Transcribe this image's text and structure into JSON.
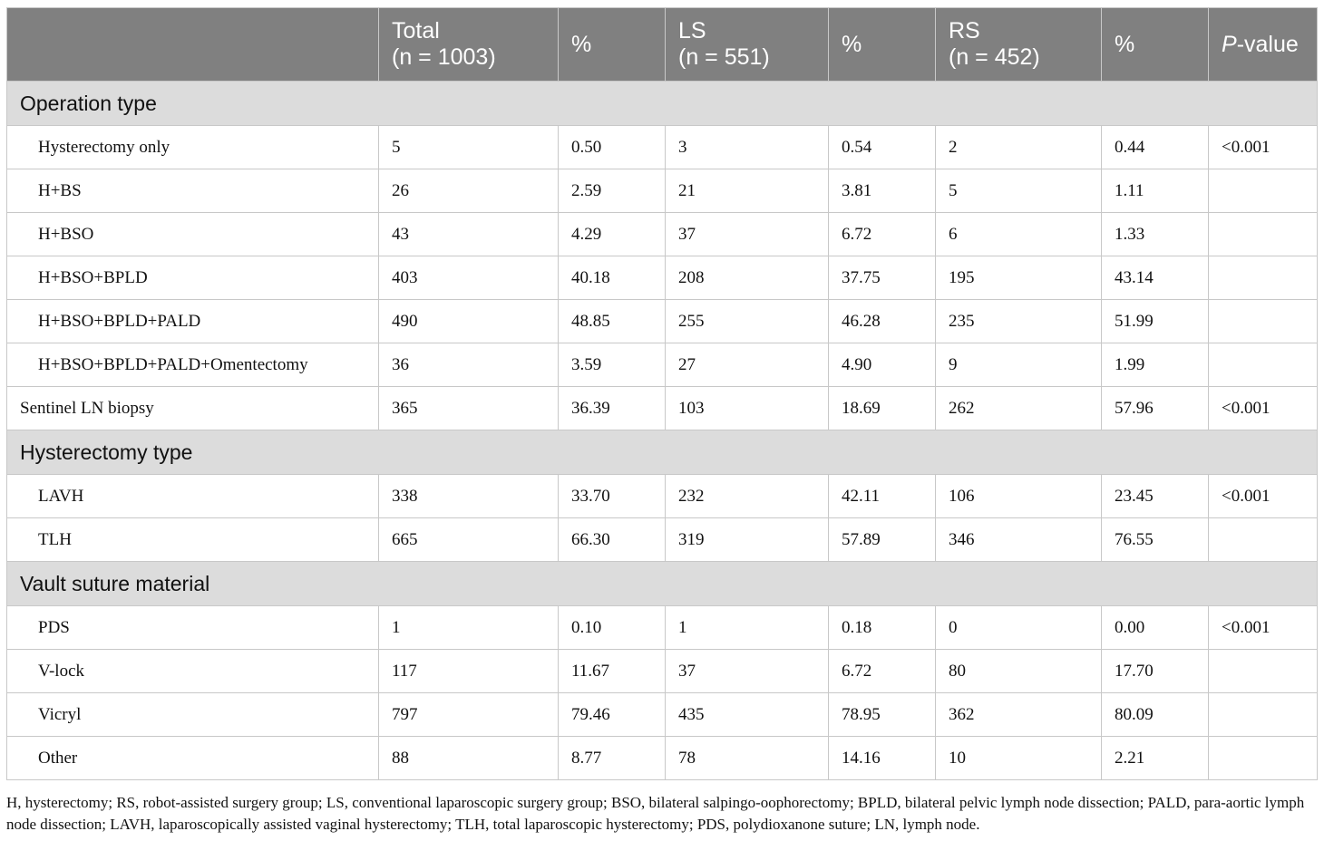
{
  "header": {
    "blank": "",
    "total_line1": "Total",
    "total_line2": "(n = 1003)",
    "pct1": "%",
    "ls_line1": "LS",
    "ls_line2": "(n = 551)",
    "pct2": "%",
    "rs_line1": "RS",
    "rs_line2": "(n = 452)",
    "pct3": "%",
    "pvalue_italic": "P",
    "pvalue_rest": "-value"
  },
  "sections": [
    {
      "title": "Operation type",
      "rows": [
        {
          "label": "Hysterectomy only",
          "total": "5",
          "total_pct": "0.50",
          "ls": "3",
          "ls_pct": "0.54",
          "rs": "2",
          "rs_pct": "0.44",
          "p": "<0.001"
        },
        {
          "label": "H+BS",
          "total": "26",
          "total_pct": "2.59",
          "ls": "21",
          "ls_pct": "3.81",
          "rs": "5",
          "rs_pct": "1.11",
          "p": ""
        },
        {
          "label": "H+BSO",
          "total": "43",
          "total_pct": "4.29",
          "ls": "37",
          "ls_pct": "6.72",
          "rs": "6",
          "rs_pct": "1.33",
          "p": ""
        },
        {
          "label": "H+BSO+BPLD",
          "total": "403",
          "total_pct": "40.18",
          "ls": "208",
          "ls_pct": "37.75",
          "rs": "195",
          "rs_pct": "43.14",
          "p": ""
        },
        {
          "label": "H+BSO+BPLD+PALD",
          "total": "490",
          "total_pct": "48.85",
          "ls": "255",
          "ls_pct": "46.28",
          "rs": "235",
          "rs_pct": "51.99",
          "p": ""
        },
        {
          "label": "H+BSO+BPLD+PALD+Omentectomy",
          "total": "36",
          "total_pct": "3.59",
          "ls": "27",
          "ls_pct": "4.90",
          "rs": "9",
          "rs_pct": "1.99",
          "p": ""
        },
        {
          "label": "Sentinel LN biopsy",
          "total": "365",
          "total_pct": "36.39",
          "ls": "103",
          "ls_pct": "18.69",
          "rs": "262",
          "rs_pct": "57.96",
          "p": "<0.001",
          "top_level": true
        }
      ]
    },
    {
      "title": "Hysterectomy type",
      "rows": [
        {
          "label": "LAVH",
          "total": "338",
          "total_pct": "33.70",
          "ls": "232",
          "ls_pct": "42.11",
          "rs": "106",
          "rs_pct": "23.45",
          "p": "<0.001"
        },
        {
          "label": "TLH",
          "total": "665",
          "total_pct": "66.30",
          "ls": "319",
          "ls_pct": "57.89",
          "rs": "346",
          "rs_pct": "76.55",
          "p": ""
        }
      ]
    },
    {
      "title": "Vault suture material",
      "rows": [
        {
          "label": "PDS",
          "total": "1",
          "total_pct": "0.10",
          "ls": "1",
          "ls_pct": "0.18",
          "rs": "0",
          "rs_pct": "0.00",
          "p": "<0.001"
        },
        {
          "label": "V-lock",
          "total": "117",
          "total_pct": "11.67",
          "ls": "37",
          "ls_pct": "6.72",
          "rs": "80",
          "rs_pct": "17.70",
          "p": ""
        },
        {
          "label": "Vicryl",
          "total": "797",
          "total_pct": "79.46",
          "ls": "435",
          "ls_pct": "78.95",
          "rs": "362",
          "rs_pct": "80.09",
          "p": ""
        },
        {
          "label": "Other",
          "total": "88",
          "total_pct": "8.77",
          "ls": "78",
          "ls_pct": "14.16",
          "rs": "10",
          "rs_pct": "2.21",
          "p": ""
        }
      ]
    }
  ],
  "footnote": "H, hysterectomy; RS, robot-assisted surgery group; LS, conventional laparoscopic surgery group; BSO, bilateral salpingo-oophorectomy; BPLD, bilateral pelvic lymph node dissection; PALD, para-aortic lymph node dissection; LAVH, laparoscopically assisted vaginal hysterectomy; TLH, total laparoscopic hysterectomy; PDS, polydioxanone suture; LN, lymph node.",
  "colors": {
    "header_bg": "#808080",
    "section_bg": "#dcdcdc",
    "border": "#c8c8c8"
  }
}
